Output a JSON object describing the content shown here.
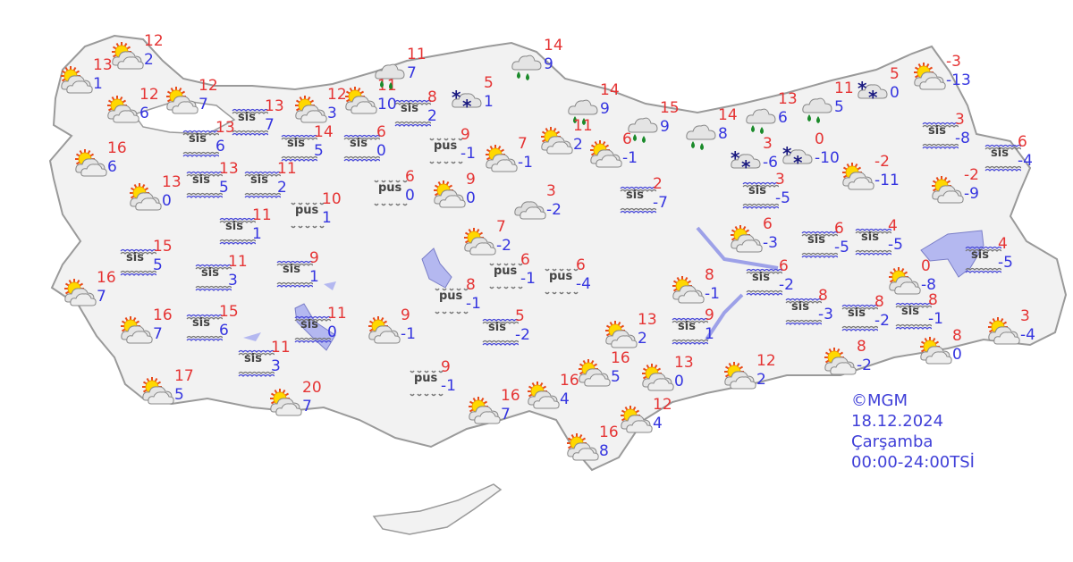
{
  "legend": {
    "copyright": "©MGM",
    "date": "18.12.2024",
    "day": "Çarşamba",
    "period": "00:00-24:00TSİ"
  },
  "colors": {
    "land": "#f2f2f2",
    "border": "#a8a8a8",
    "water": "#b4b8f0",
    "max_temp": "#e53434",
    "min_temp": "#3535e0"
  },
  "icon_types": {
    "pc": "partly-cloudy-icon",
    "rain": "rain-icon",
    "snow": "snow-icon",
    "fog": "fog-icon",
    "haze": "haze-icon"
  },
  "stations": [
    {
      "type": "pc",
      "hi": "13",
      "lo": "1"
    },
    {
      "type": "pc",
      "hi": "12",
      "lo": "2"
    },
    {
      "type": "pc",
      "hi": "12",
      "lo": "6"
    },
    {
      "type": "pc",
      "hi": "12",
      "lo": "7"
    },
    {
      "type": "pc",
      "hi": "16",
      "lo": "6"
    },
    {
      "type": "pc",
      "hi": "13",
      "lo": "0"
    },
    {
      "type": "fog",
      "label": "sis",
      "hi": "13",
      "lo": "7"
    },
    {
      "type": "fog",
      "label": "sis",
      "hi": "13",
      "lo": "6"
    },
    {
      "type": "fog",
      "label": "sis",
      "hi": "13",
      "lo": "5"
    },
    {
      "type": "fog",
      "label": "sis",
      "hi": "11",
      "lo": "2"
    },
    {
      "type": "fog",
      "label": "sis",
      "hi": "14",
      "lo": "5"
    },
    {
      "type": "fog",
      "label": "sis",
      "hi": "6",
      "lo": "0"
    },
    {
      "type": "pc",
      "hi": "12",
      "lo": "3"
    },
    {
      "type": "pc",
      "hi": "11",
      "lo": "10"
    },
    {
      "type": "rain",
      "hi": "11",
      "lo": "7"
    },
    {
      "type": "fog",
      "label": "sis",
      "hi": "8",
      "lo": "2"
    },
    {
      "type": "snow",
      "hi": "5",
      "lo": "1"
    },
    {
      "type": "rain",
      "hi": "14",
      "lo": "9"
    },
    {
      "type": "rain",
      "hi": "14",
      "lo": "9"
    },
    {
      "type": "rain",
      "hi": "15",
      "lo": "9"
    },
    {
      "type": "rain",
      "hi": "14",
      "lo": "8"
    },
    {
      "type": "rain",
      "hi": "13",
      "lo": "6"
    },
    {
      "type": "rain",
      "hi": "11",
      "lo": "5"
    },
    {
      "type": "snow",
      "hi": "5",
      "lo": "0"
    },
    {
      "type": "pc",
      "hi": "-3",
      "lo": "-13"
    },
    {
      "type": "haze",
      "label": "pus",
      "hi": "9",
      "lo": "-1"
    },
    {
      "type": "pc",
      "hi": "7",
      "lo": "-1"
    },
    {
      "type": "pc",
      "hi": "11",
      "lo": "2"
    },
    {
      "type": "pc",
      "hi": "6",
      "lo": "-1"
    },
    {
      "type": "haze",
      "label": "pus",
      "hi": "6",
      "lo": "0"
    },
    {
      "type": "pc",
      "hi": "9",
      "lo": "0"
    },
    {
      "type": "cloud",
      "hi": "3",
      "lo": "-2"
    },
    {
      "type": "fog",
      "label": "sis",
      "hi": "2",
      "lo": "-7"
    },
    {
      "type": "snow",
      "hi": "3",
      "lo": "-6"
    },
    {
      "type": "snow",
      "hi": "0",
      "lo": "-10"
    },
    {
      "type": "pc",
      "hi": "-2",
      "lo": "-11"
    },
    {
      "type": "fog",
      "label": "sis",
      "hi": "3",
      "lo": "-8"
    },
    {
      "type": "fog",
      "label": "sis",
      "hi": "6",
      "lo": "-4"
    },
    {
      "type": "pc",
      "hi": "-2",
      "lo": "-9"
    },
    {
      "type": "fog",
      "label": "sis",
      "hi": "3",
      "lo": "-5"
    },
    {
      "type": "haze",
      "label": "pus",
      "hi": "10",
      "lo": "1"
    },
    {
      "type": "fog",
      "label": "sis",
      "hi": "11",
      "lo": "1"
    },
    {
      "type": "fog",
      "label": "sis",
      "hi": "15",
      "lo": "5"
    },
    {
      "type": "fog",
      "label": "sis",
      "hi": "11",
      "lo": "3"
    },
    {
      "type": "fog",
      "label": "sis",
      "hi": "9",
      "lo": "1"
    },
    {
      "type": "pc",
      "hi": "16",
      "lo": "7"
    },
    {
      "type": "pc",
      "hi": "16",
      "lo": "7"
    },
    {
      "type": "fog",
      "label": "sis",
      "hi": "15",
      "lo": "6"
    },
    {
      "type": "fog",
      "label": "sis",
      "hi": "11",
      "lo": "0"
    },
    {
      "type": "pc",
      "hi": "9",
      "lo": "-1"
    },
    {
      "type": "fog",
      "label": "sis",
      "hi": "11",
      "lo": "3"
    },
    {
      "type": "pc",
      "hi": "17",
      "lo": "5"
    },
    {
      "type": "pc",
      "hi": "20",
      "lo": "7"
    },
    {
      "type": "haze",
      "label": "pus",
      "hi": "9",
      "lo": "-1"
    },
    {
      "type": "pc",
      "hi": "7",
      "lo": "-2"
    },
    {
      "type": "haze",
      "label": "pus",
      "hi": "8",
      "lo": "-1"
    },
    {
      "type": "haze",
      "label": "pus",
      "hi": "6",
      "lo": "-1"
    },
    {
      "type": "haze",
      "label": "pus",
      "hi": "6",
      "lo": "-4"
    },
    {
      "type": "fog",
      "label": "sis",
      "hi": "5",
      "lo": "-2"
    },
    {
      "type": "pc",
      "hi": "16",
      "lo": "7"
    },
    {
      "type": "pc",
      "hi": "16",
      "lo": "4"
    },
    {
      "type": "pc",
      "hi": "16",
      "lo": "5"
    },
    {
      "type": "pc",
      "hi": "13",
      "lo": "2"
    },
    {
      "type": "pc",
      "hi": "16",
      "lo": "8"
    },
    {
      "type": "pc",
      "hi": "13",
      "lo": "0"
    },
    {
      "type": "pc",
      "hi": "12",
      "lo": "4"
    },
    {
      "type": "pc",
      "hi": "8",
      "lo": "-1"
    },
    {
      "type": "fog",
      "label": "sis",
      "hi": "9",
      "lo": "1"
    },
    {
      "type": "pc",
      "hi": "12",
      "lo": "2"
    },
    {
      "type": "pc",
      "hi": "6",
      "lo": "-3"
    },
    {
      "type": "fog",
      "label": "sis",
      "hi": "6",
      "lo": "-2"
    },
    {
      "type": "fog",
      "label": "sis",
      "hi": "6",
      "lo": "-5"
    },
    {
      "type": "fog",
      "label": "sis",
      "hi": "8",
      "lo": "-3"
    },
    {
      "type": "fog",
      "label": "sis",
      "hi": "8",
      "lo": "-2"
    },
    {
      "type": "fog",
      "label": "sis",
      "hi": "8",
      "lo": "-1"
    },
    {
      "type": "pc",
      "hi": "8",
      "lo": "-2"
    },
    {
      "type": "pc",
      "hi": "8",
      "lo": "0"
    },
    {
      "type": "pc",
      "hi": "3",
      "lo": "-4"
    },
    {
      "type": "pc",
      "hi": "0",
      "lo": "-8"
    },
    {
      "type": "fog",
      "label": "sis",
      "hi": "4",
      "lo": "-5"
    },
    {
      "type": "fog",
      "label": "sis",
      "hi": "4",
      "lo": "-5"
    }
  ]
}
